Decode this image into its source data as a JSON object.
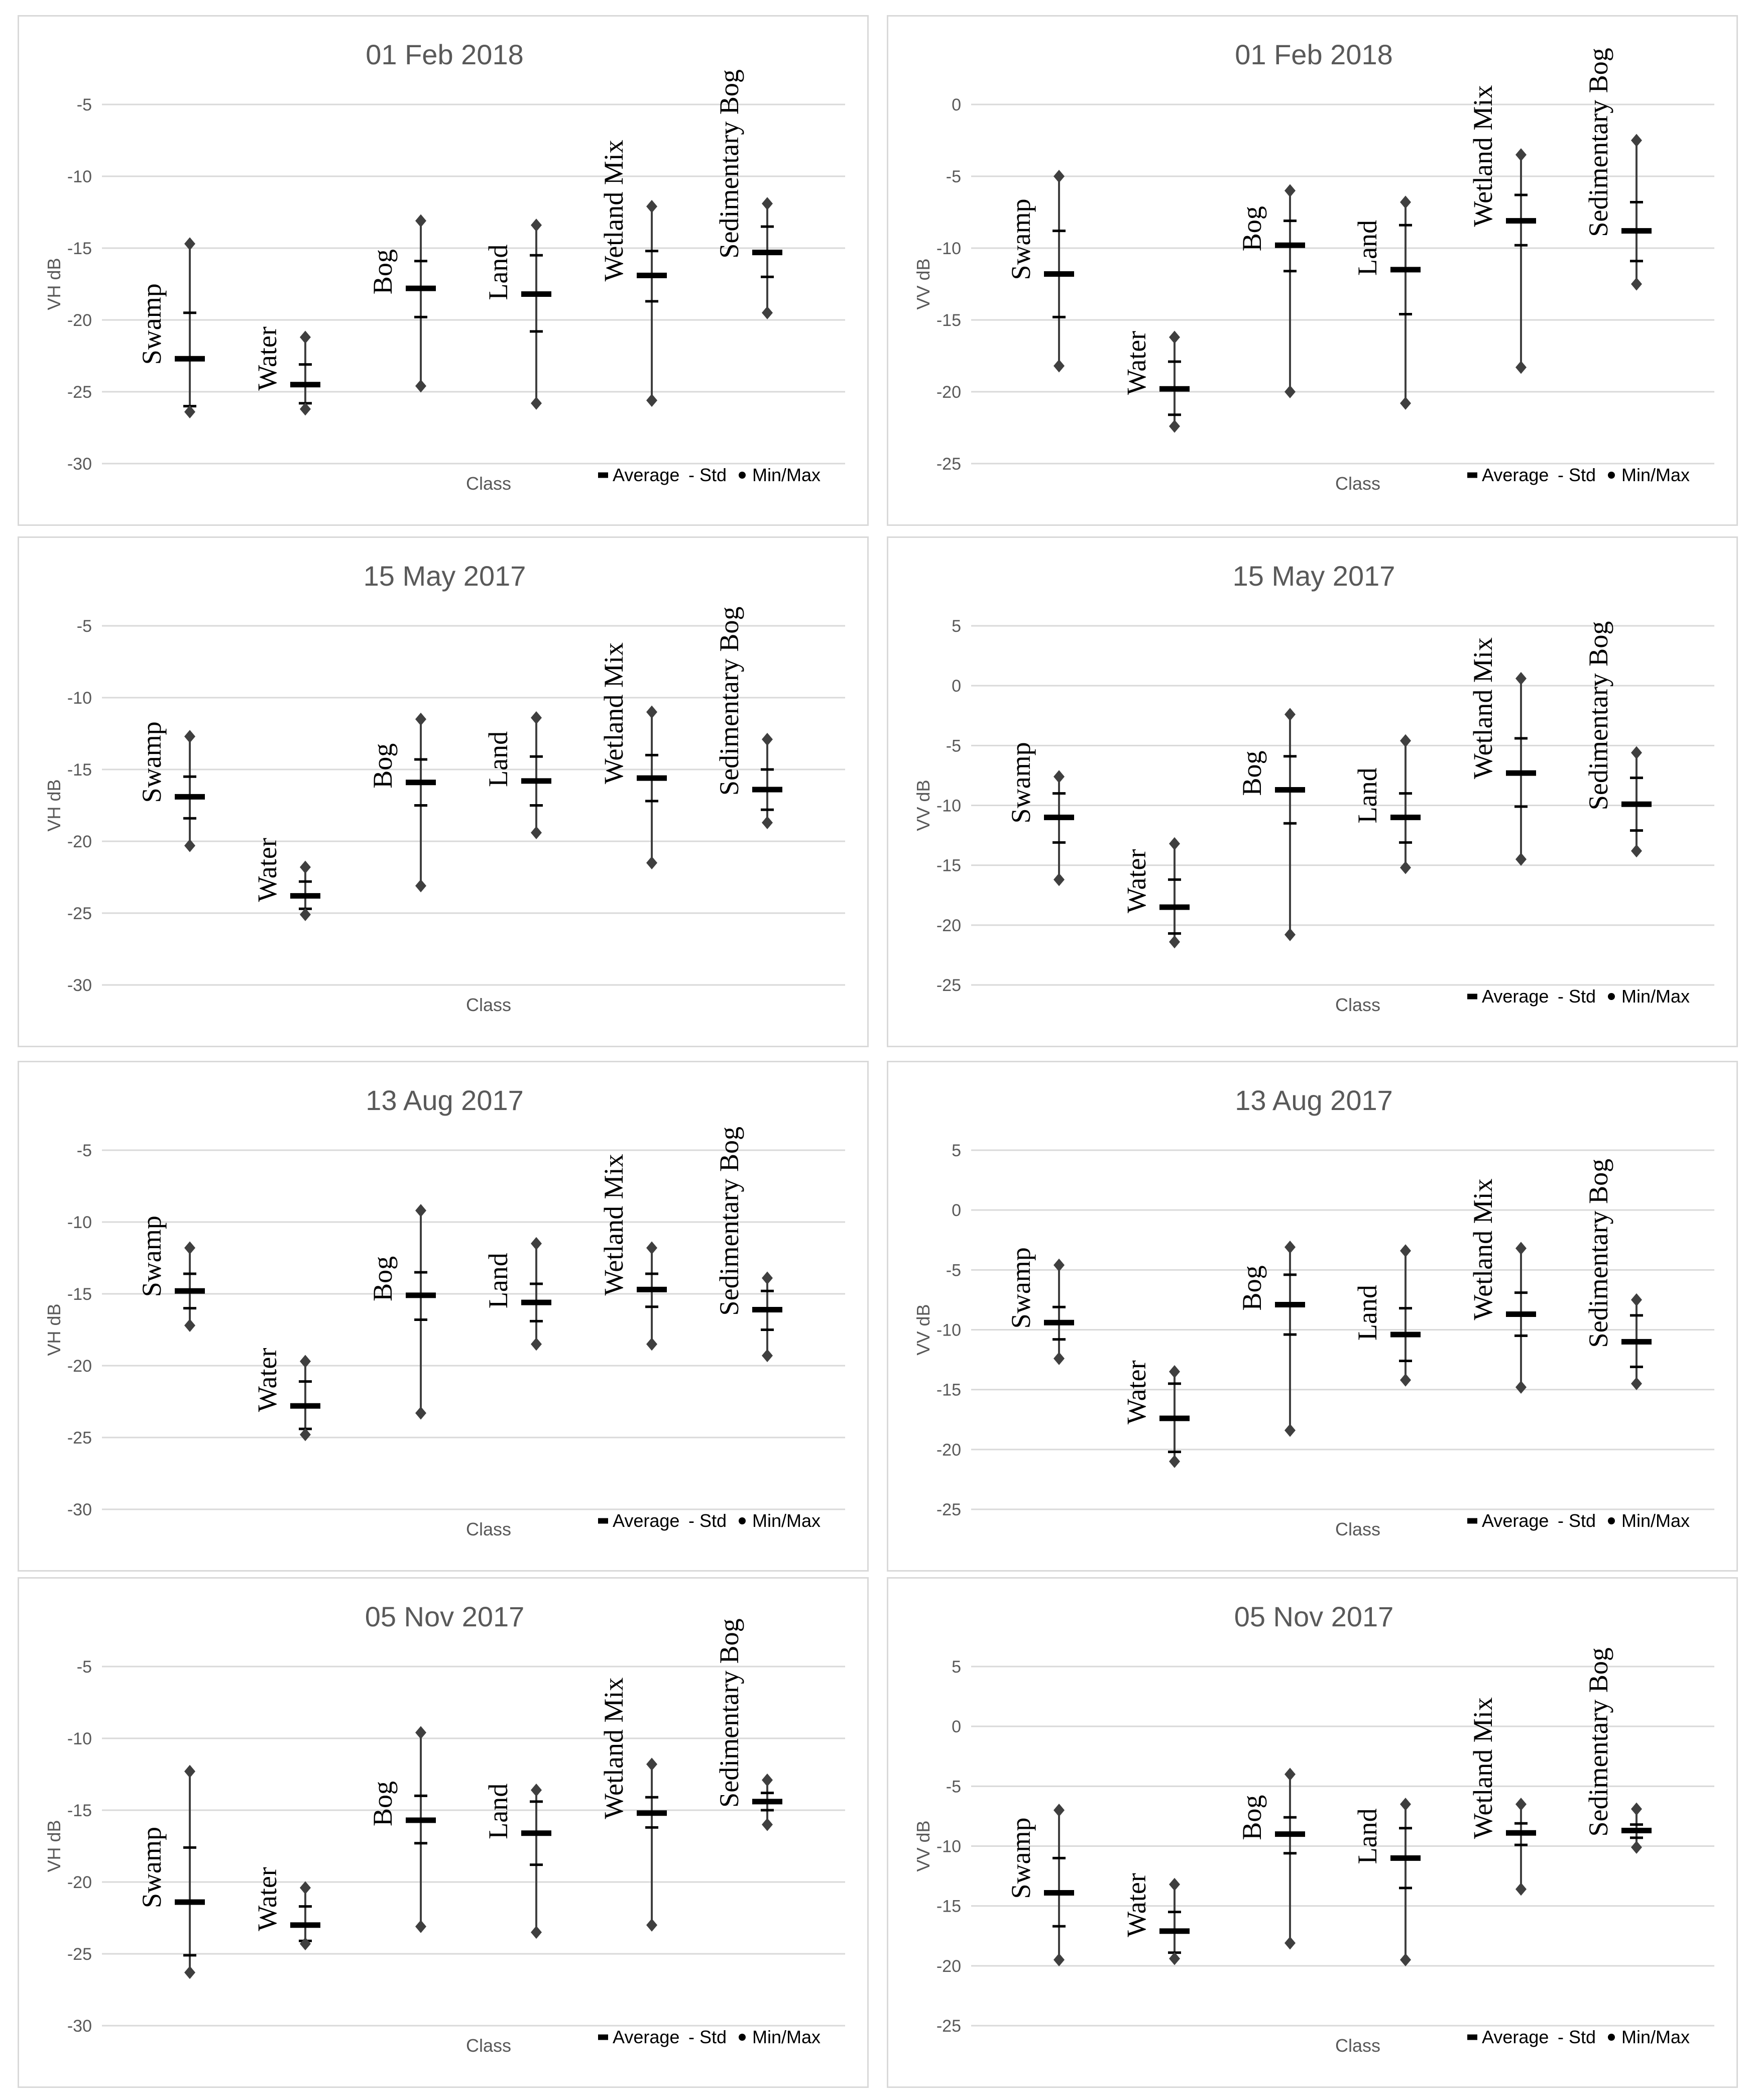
{
  "legend": {
    "average": "Average",
    "std": "- Std",
    "minmax": "Min/Max"
  },
  "xlabel": "Class",
  "chart_data": [
    {
      "type": "scatter",
      "title": "01 Feb 2018",
      "ylabel": "VH dB",
      "xlabel": "Class",
      "ylim": [
        -30,
        -5
      ],
      "yticks": [
        -5,
        -10,
        -15,
        -20,
        -25,
        -30
      ],
      "legend_shown": true,
      "series": [
        {
          "name": "Swamp",
          "avg": -22.7,
          "std_upper": -19.5,
          "std_lower": -26.0,
          "min": -26.4,
          "max": -14.7
        },
        {
          "name": "Water",
          "avg": -24.5,
          "std_upper": -23.1,
          "std_lower": -25.8,
          "min": -26.2,
          "max": -21.2
        },
        {
          "name": "Bog",
          "avg": -17.8,
          "std_upper": -15.9,
          "std_lower": -19.8,
          "min": -24.6,
          "max": -13.1
        },
        {
          "name": "Land",
          "avg": -18.2,
          "std_upper": -15.5,
          "std_lower": -20.8,
          "min": -25.8,
          "max": -13.4
        },
        {
          "name": "Wetland Mix",
          "avg": -16.9,
          "std_upper": -15.2,
          "std_lower": -18.7,
          "min": -25.6,
          "max": -12.1
        },
        {
          "name": "Sedimentary Bog",
          "avg": -15.3,
          "std_upper": -13.5,
          "std_lower": -17.0,
          "min": -19.5,
          "max": -11.9
        }
      ]
    },
    {
      "type": "scatter",
      "title": "01 Feb 2018",
      "ylabel": "VV dB",
      "xlabel": "Class",
      "ylim": [
        -25,
        0
      ],
      "yticks": [
        0,
        -5,
        -10,
        -15,
        -20,
        -25
      ],
      "legend_shown": true,
      "series": [
        {
          "name": "Swamp",
          "avg": -11.8,
          "std_upper": -8.8,
          "std_lower": -14.8,
          "min": -18.2,
          "max": -5.0
        },
        {
          "name": "Water",
          "avg": -19.8,
          "std_upper": -17.9,
          "std_lower": -21.6,
          "min": -22.4,
          "max": -16.2
        },
        {
          "name": "Bog",
          "avg": -9.8,
          "std_upper": -8.1,
          "std_lower": -11.6,
          "min": -20.0,
          "max": -6.0
        },
        {
          "name": "Land",
          "avg": -11.5,
          "std_upper": -8.4,
          "std_lower": -14.6,
          "min": -20.8,
          "max": -6.8
        },
        {
          "name": "Wetland Mix",
          "avg": -8.1,
          "std_upper": -6.3,
          "std_lower": -9.8,
          "min": -18.3,
          "max": -3.5
        },
        {
          "name": "Sedimentary Bog",
          "avg": -8.8,
          "std_upper": -6.8,
          "std_lower": -10.9,
          "min": -12.5,
          "max": -2.5
        }
      ]
    },
    {
      "type": "scatter",
      "title": "15 May 2017",
      "ylabel": "VH dB",
      "xlabel": "Class",
      "ylim": [
        -30,
        -5
      ],
      "yticks": [
        -5,
        -10,
        -15,
        -20,
        -25,
        -30
      ],
      "legend_shown": false,
      "series": [
        {
          "name": "Swamp",
          "avg": -16.9,
          "std_upper": -15.5,
          "std_lower": -18.4,
          "min": -20.3,
          "max": -12.7
        },
        {
          "name": "Water",
          "avg": -23.8,
          "std_upper": -22.8,
          "std_lower": -24.7,
          "min": -25.1,
          "max": -21.8
        },
        {
          "name": "Bog",
          "avg": -15.9,
          "std_upper": -14.3,
          "std_lower": -17.5,
          "min": -23.1,
          "max": -11.5
        },
        {
          "name": "Land",
          "avg": -15.8,
          "std_upper": -14.1,
          "std_lower": -17.5,
          "min": -19.4,
          "max": -11.4
        },
        {
          "name": "Wetland Mix",
          "avg": -15.6,
          "std_upper": -14.0,
          "std_lower": -17.2,
          "min": -21.5,
          "max": -11.0
        },
        {
          "name": "Sedimentary Bog",
          "avg": -16.4,
          "std_upper": -15.0,
          "std_lower": -17.8,
          "min": -18.7,
          "max": -12.9
        }
      ]
    },
    {
      "type": "scatter",
      "title": "15 May 2017",
      "ylabel": "VV dB",
      "xlabel": "Class",
      "ylim": [
        -25,
        5
      ],
      "yticks": [
        5,
        0,
        -5,
        -10,
        -15,
        -20,
        -25
      ],
      "legend_shown": true,
      "series": [
        {
          "name": "Swamp",
          "avg": -11.0,
          "std_upper": -9.0,
          "std_lower": -13.1,
          "min": -16.2,
          "max": -7.6
        },
        {
          "name": "Water",
          "avg": -18.5,
          "std_upper": -16.2,
          "std_lower": -20.7,
          "min": -21.4,
          "max": -13.2
        },
        {
          "name": "Bog",
          "avg": -8.7,
          "std_upper": -5.9,
          "std_lower": -11.5,
          "min": -20.8,
          "max": -2.4
        },
        {
          "name": "Land",
          "avg": -11.0,
          "std_upper": -9.0,
          "std_lower": -13.1,
          "min": -15.2,
          "max": -4.6
        },
        {
          "name": "Wetland Mix",
          "avg": -7.3,
          "std_upper": -4.4,
          "std_lower": -10.1,
          "min": -14.5,
          "max": 0.6
        },
        {
          "name": "Sedimentary Bog",
          "avg": -9.9,
          "std_upper": -7.7,
          "std_lower": -12.1,
          "min": -13.8,
          "max": -5.6
        }
      ]
    },
    {
      "type": "scatter",
      "title": "13 Aug 2017",
      "ylabel": "VH dB",
      "xlabel": "Class",
      "ylim": [
        -30,
        -5
      ],
      "yticks": [
        -5,
        -10,
        -15,
        -20,
        -25,
        -30
      ],
      "legend_shown": true,
      "series": [
        {
          "name": "Swamp",
          "avg": -14.8,
          "std_upper": -13.6,
          "std_lower": -16.0,
          "min": -17.2,
          "max": -11.8
        },
        {
          "name": "Water",
          "avg": -22.8,
          "std_upper": -21.1,
          "std_lower": -24.4,
          "min": -24.8,
          "max": -19.7
        },
        {
          "name": "Bog",
          "avg": -15.1,
          "std_upper": -13.5,
          "std_lower": -16.8,
          "min": -23.3,
          "max": -9.2
        },
        {
          "name": "Land",
          "avg": -15.6,
          "std_upper": -14.3,
          "std_lower": -16.9,
          "min": -18.5,
          "max": -11.5
        },
        {
          "name": "Wetland Mix",
          "avg": -14.7,
          "std_upper": -13.6,
          "std_lower": -15.9,
          "min": -18.5,
          "max": -11.8
        },
        {
          "name": "Sedimentary Bog",
          "avg": -16.1,
          "std_upper": -14.8,
          "std_lower": -17.5,
          "min": -19.3,
          "max": -13.9
        }
      ]
    },
    {
      "type": "scatter",
      "title": "13 Aug 2017",
      "ylabel": "VV dB",
      "xlabel": "Class",
      "ylim": [
        -25,
        5
      ],
      "yticks": [
        5,
        0,
        -5,
        -10,
        -15,
        -20,
        -25
      ],
      "legend_shown": true,
      "series": [
        {
          "name": "Swamp",
          "avg": -9.4,
          "std_upper": -8.1,
          "std_lower": -10.8,
          "min": -12.4,
          "max": -4.6
        },
        {
          "name": "Water",
          "avg": -17.4,
          "std_upper": -14.5,
          "std_lower": -20.2,
          "min": -21.0,
          "max": -13.5
        },
        {
          "name": "Bog",
          "avg": -7.9,
          "std_upper": -5.4,
          "std_lower": -10.4,
          "min": -18.4,
          "max": -3.1
        },
        {
          "name": "Land",
          "avg": -10.4,
          "std_upper": -8.2,
          "std_lower": -12.6,
          "min": -14.2,
          "max": -3.4
        },
        {
          "name": "Wetland Mix",
          "avg": -8.7,
          "std_upper": -6.9,
          "std_lower": -10.5,
          "min": -14.8,
          "max": -3.2
        },
        {
          "name": "Sedimentary Bog",
          "avg": -11.0,
          "std_upper": -8.8,
          "std_lower": -13.1,
          "min": -14.5,
          "max": -7.5
        }
      ]
    },
    {
      "type": "scatter",
      "title": "05 Nov 2017",
      "ylabel": "VH dB",
      "xlabel": "Class",
      "ylim": [
        -30,
        -5
      ],
      "yticks": [
        -5,
        -10,
        -15,
        -20,
        -25,
        -30
      ],
      "legend_shown": true,
      "series": [
        {
          "name": "Swamp",
          "avg": -21.4,
          "std_upper": -17.6,
          "std_lower": -25.1,
          "min": -26.3,
          "max": -12.3
        },
        {
          "name": "Water",
          "avg": -23.0,
          "std_upper": -21.7,
          "std_lower": -24.1,
          "min": -24.3,
          "max": -20.4
        },
        {
          "name": "Bog",
          "avg": -15.7,
          "std_upper": -14.0,
          "std_lower": -17.3,
          "min": -23.1,
          "max": -9.6
        },
        {
          "name": "Land",
          "avg": -16.6,
          "std_upper": -14.4,
          "std_lower": -18.8,
          "min": -23.5,
          "max": -13.6
        },
        {
          "name": "Wetland Mix",
          "avg": -15.2,
          "std_upper": -14.1,
          "std_lower": -16.2,
          "min": -23.0,
          "max": -11.8
        },
        {
          "name": "Sedimentary Bog",
          "avg": -14.4,
          "std_upper": -13.8,
          "std_lower": -15.0,
          "min": -16.0,
          "max": -12.9
        }
      ]
    },
    {
      "type": "scatter",
      "title": "05 Nov 2017",
      "ylabel": "VV dB",
      "xlabel": "Class",
      "ylim": [
        -25,
        5
      ],
      "yticks": [
        5,
        0,
        -5,
        -10,
        -15,
        -20,
        -25
      ],
      "legend_shown": true,
      "series": [
        {
          "name": "Swamp",
          "avg": -13.9,
          "std_upper": -11.0,
          "std_lower": -16.7,
          "min": -19.5,
          "max": -7.0
        },
        {
          "name": "Water",
          "avg": -17.1,
          "std_upper": -15.5,
          "std_lower": -18.9,
          "min": -19.4,
          "max": -13.2
        },
        {
          "name": "Bog",
          "avg": -9.0,
          "std_upper": -7.6,
          "std_lower": -10.6,
          "min": -18.1,
          "max": -4.0
        },
        {
          "name": "Land",
          "avg": -11.0,
          "std_upper": -8.5,
          "std_lower": -13.5,
          "min": -19.5,
          "max": -6.5
        },
        {
          "name": "Wetland Mix",
          "avg": -8.9,
          "std_upper": -8.1,
          "std_lower": -9.9,
          "min": -13.6,
          "max": -6.5
        },
        {
          "name": "Sedimentary Bog",
          "avg": -8.7,
          "std_upper": -8.2,
          "std_lower": -9.3,
          "min": -10.1,
          "max": -6.9
        }
      ]
    }
  ]
}
